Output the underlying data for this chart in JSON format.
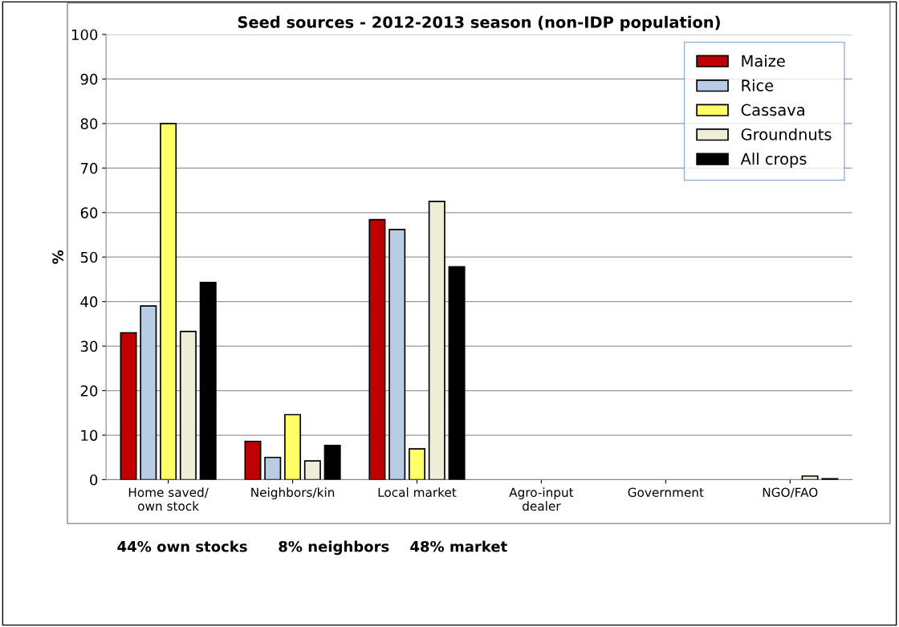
{
  "chart_data": {
    "type": "bar",
    "title": "Seed sources - 2012-2013 season (non-IDP population)",
    "ylabel": "%",
    "categories": [
      "Home saved/\nown stock",
      "Neighbors/kin",
      "Local market",
      "Agro-input\ndealer",
      "Government",
      "NGO/FAO"
    ],
    "series": [
      {
        "name": "Maize",
        "color": "#c00000",
        "values": [
          33,
          8.6,
          58.4,
          null,
          null,
          null
        ]
      },
      {
        "name": "Rice",
        "color": "#b8cce4",
        "values": [
          39,
          5,
          56.2,
          null,
          null,
          null
        ]
      },
      {
        "name": "Cassava",
        "color": "#ffff66",
        "values": [
          80,
          14.6,
          6.9,
          null,
          null,
          null
        ]
      },
      {
        "name": "Groundnuts",
        "color": "#eeeed8",
        "values": [
          33.3,
          4.2,
          62.5,
          null,
          null,
          0.8
        ]
      },
      {
        "name": "All crops",
        "color": "#000000",
        "values": [
          44.3,
          7.7,
          47.8,
          null,
          null,
          0.2
        ]
      }
    ],
    "ylim": [
      0,
      100
    ],
    "yticks": [
      0,
      10,
      20,
      30,
      40,
      50,
      60,
      70,
      80,
      90,
      100
    ],
    "grid": "y",
    "legend": "top right",
    "annotations": [
      "44% own stocks      8% neighbors    48% market"
    ]
  }
}
